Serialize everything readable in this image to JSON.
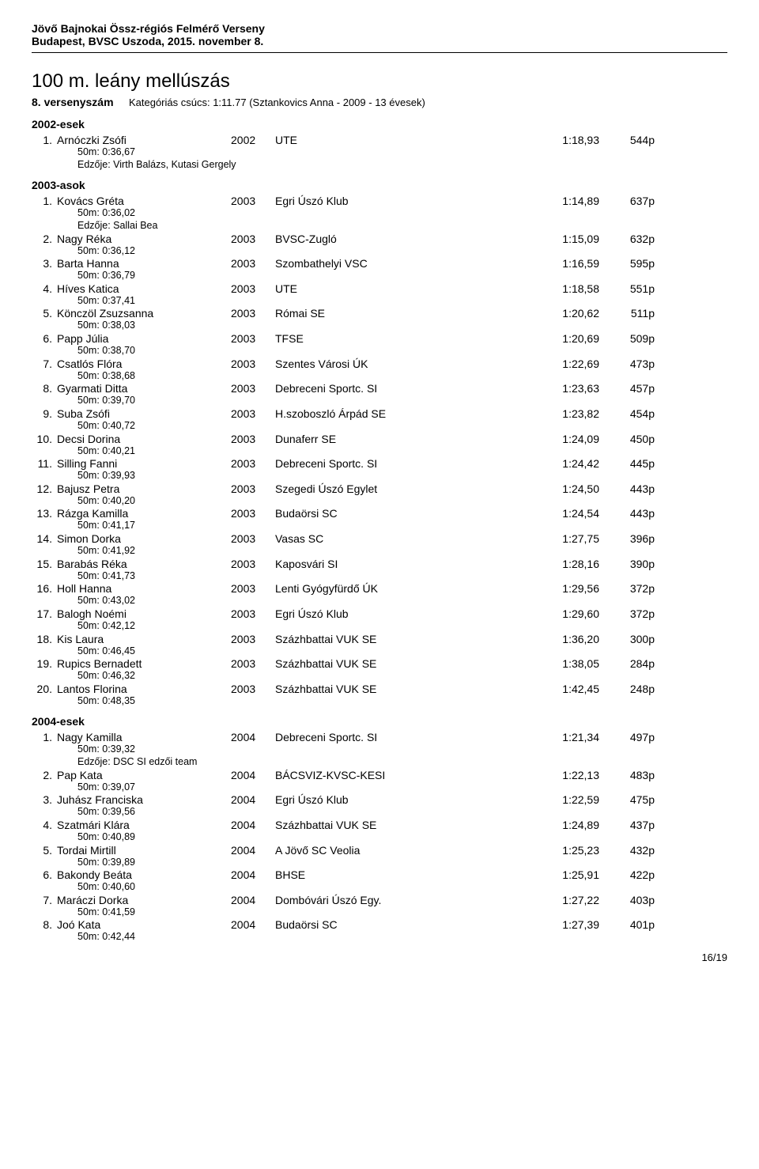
{
  "header": {
    "line1": "Jövő Bajnokai Össz-régiós Felmérő Verseny",
    "line2": "Budapest, BVSC Uszoda, 2015. november 8."
  },
  "event": {
    "title": "100 m. leány mellúszás",
    "number": "8. versenyszám",
    "record": "Kategóriás csúcs:  1:11.77 (Sztankovics Anna - 2009 - 13 évesek)"
  },
  "groups": [
    {
      "label": "2002-esek",
      "rows": [
        {
          "place": "1.",
          "name": "Arnóczki Zsófi",
          "year": "2002",
          "club": "UTE",
          "time": "1:18,93",
          "pts": "544p",
          "splits": "50m:   0:36,67",
          "coach": "Edzője: Virth Balázs, Kutasi Gergely"
        }
      ]
    },
    {
      "label": "2003-asok",
      "rows": [
        {
          "place": "1.",
          "name": "Kovács Gréta",
          "year": "2003",
          "club": "Egri Úszó Klub",
          "time": "1:14,89",
          "pts": "637p",
          "splits": "50m:   0:36,02",
          "coach": "Edzője: Sallai Bea"
        },
        {
          "place": "2.",
          "name": "Nagy Réka",
          "year": "2003",
          "club": "BVSC-Zugló",
          "time": "1:15,09",
          "pts": "632p",
          "splits": "50m:   0:36,12"
        },
        {
          "place": "3.",
          "name": "Barta Hanna",
          "year": "2003",
          "club": "Szombathelyi VSC",
          "time": "1:16,59",
          "pts": "595p",
          "splits": "50m:   0:36,79"
        },
        {
          "place": "4.",
          "name": "Híves Katica",
          "year": "2003",
          "club": "UTE",
          "time": "1:18,58",
          "pts": "551p",
          "splits": "50m:   0:37,41"
        },
        {
          "place": "5.",
          "name": "Könczöl Zsuzsanna",
          "year": "2003",
          "club": "Római SE",
          "time": "1:20,62",
          "pts": "511p",
          "splits": "50m:   0:38,03"
        },
        {
          "place": "6.",
          "name": "Papp Júlia",
          "year": "2003",
          "club": "TFSE",
          "time": "1:20,69",
          "pts": "509p",
          "splits": "50m:   0:38,70"
        },
        {
          "place": "7.",
          "name": "Csatlós Flóra",
          "year": "2003",
          "club": "Szentes Városi ÚK",
          "time": "1:22,69",
          "pts": "473p",
          "splits": "50m:   0:38,68"
        },
        {
          "place": "8.",
          "name": "Gyarmati Ditta",
          "year": "2003",
          "club": "Debreceni Sportc. SI",
          "time": "1:23,63",
          "pts": "457p",
          "splits": "50m:   0:39,70"
        },
        {
          "place": "9.",
          "name": "Suba Zsófi",
          "year": "2003",
          "club": "H.szoboszló Árpád SE",
          "time": "1:23,82",
          "pts": "454p",
          "splits": "50m:   0:40,72"
        },
        {
          "place": "10.",
          "name": "Decsi Dorina",
          "year": "2003",
          "club": "Dunaferr SE",
          "time": "1:24,09",
          "pts": "450p",
          "splits": "50m:   0:40,21"
        },
        {
          "place": "11.",
          "name": "Silling Fanni",
          "year": "2003",
          "club": "Debreceni Sportc. SI",
          "time": "1:24,42",
          "pts": "445p",
          "splits": "50m:   0:39,93"
        },
        {
          "place": "12.",
          "name": "Bajusz Petra",
          "year": "2003",
          "club": "Szegedi Úszó Egylet",
          "time": "1:24,50",
          "pts": "443p",
          "splits": "50m:   0:40,20"
        },
        {
          "place": "13.",
          "name": "Rázga Kamilla",
          "year": "2003",
          "club": "Budaörsi SC",
          "time": "1:24,54",
          "pts": "443p",
          "splits": "50m:   0:41,17"
        },
        {
          "place": "14.",
          "name": "Simon Dorka",
          "year": "2003",
          "club": "Vasas SC",
          "time": "1:27,75",
          "pts": "396p",
          "splits": "50m:   0:41,92"
        },
        {
          "place": "15.",
          "name": "Barabás Réka",
          "year": "2003",
          "club": "Kaposvári SI",
          "time": "1:28,16",
          "pts": "390p",
          "splits": "50m:   0:41,73"
        },
        {
          "place": "16.",
          "name": "Holl Hanna",
          "year": "2003",
          "club": "Lenti Gyógyfürdő ÚK",
          "time": "1:29,56",
          "pts": "372p",
          "splits": "50m:   0:43,02"
        },
        {
          "place": "17.",
          "name": "Balogh Noémi",
          "year": "2003",
          "club": "Egri Úszó Klub",
          "time": "1:29,60",
          "pts": "372p",
          "splits": "50m:   0:42,12"
        },
        {
          "place": "18.",
          "name": "Kis Laura",
          "year": "2003",
          "club": "Százhbattai VUK SE",
          "time": "1:36,20",
          "pts": "300p",
          "splits": "50m:   0:46,45"
        },
        {
          "place": "19.",
          "name": "Rupics Bernadett",
          "year": "2003",
          "club": "Százhbattai VUK SE",
          "time": "1:38,05",
          "pts": "284p",
          "splits": "50m:   0:46,32"
        },
        {
          "place": "20.",
          "name": "Lantos Florina",
          "year": "2003",
          "club": "Százhbattai VUK SE",
          "time": "1:42,45",
          "pts": "248p",
          "splits": "50m:   0:48,35"
        }
      ]
    },
    {
      "label": "2004-esek",
      "rows": [
        {
          "place": "1.",
          "name": "Nagy Kamilla",
          "year": "2004",
          "club": "Debreceni Sportc. SI",
          "time": "1:21,34",
          "pts": "497p",
          "splits": "50m:   0:39,32",
          "coach": "Edzője: DSC SI edzői team"
        },
        {
          "place": "2.",
          "name": "Pap Kata",
          "year": "2004",
          "club": "BÁCSVIZ-KVSC-KESI",
          "time": "1:22,13",
          "pts": "483p",
          "splits": "50m:   0:39,07"
        },
        {
          "place": "3.",
          "name": "Juhász Franciska",
          "year": "2004",
          "club": "Egri Úszó Klub",
          "time": "1:22,59",
          "pts": "475p",
          "splits": "50m:   0:39,56"
        },
        {
          "place": "4.",
          "name": "Szatmári Klára",
          "year": "2004",
          "club": "Százhbattai VUK SE",
          "time": "1:24,89",
          "pts": "437p",
          "splits": "50m:   0:40,89"
        },
        {
          "place": "5.",
          "name": "Tordai Mirtill",
          "year": "2004",
          "club": "A Jövő SC Veolia",
          "time": "1:25,23",
          "pts": "432p",
          "splits": "50m:   0:39,89"
        },
        {
          "place": "6.",
          "name": "Bakondy Beáta",
          "year": "2004",
          "club": "BHSE",
          "time": "1:25,91",
          "pts": "422p",
          "splits": "50m:   0:40,60"
        },
        {
          "place": "7.",
          "name": "Maráczi Dorka",
          "year": "2004",
          "club": "Dombóvári Úszó Egy.",
          "time": "1:27,22",
          "pts": "403p",
          "splits": "50m:   0:41,59"
        },
        {
          "place": "8.",
          "name": "Joó Kata",
          "year": "2004",
          "club": "Budaörsi SC",
          "time": "1:27,39",
          "pts": "401p",
          "splits": "50m:   0:42,44"
        }
      ]
    }
  ],
  "page_number": "16/19"
}
